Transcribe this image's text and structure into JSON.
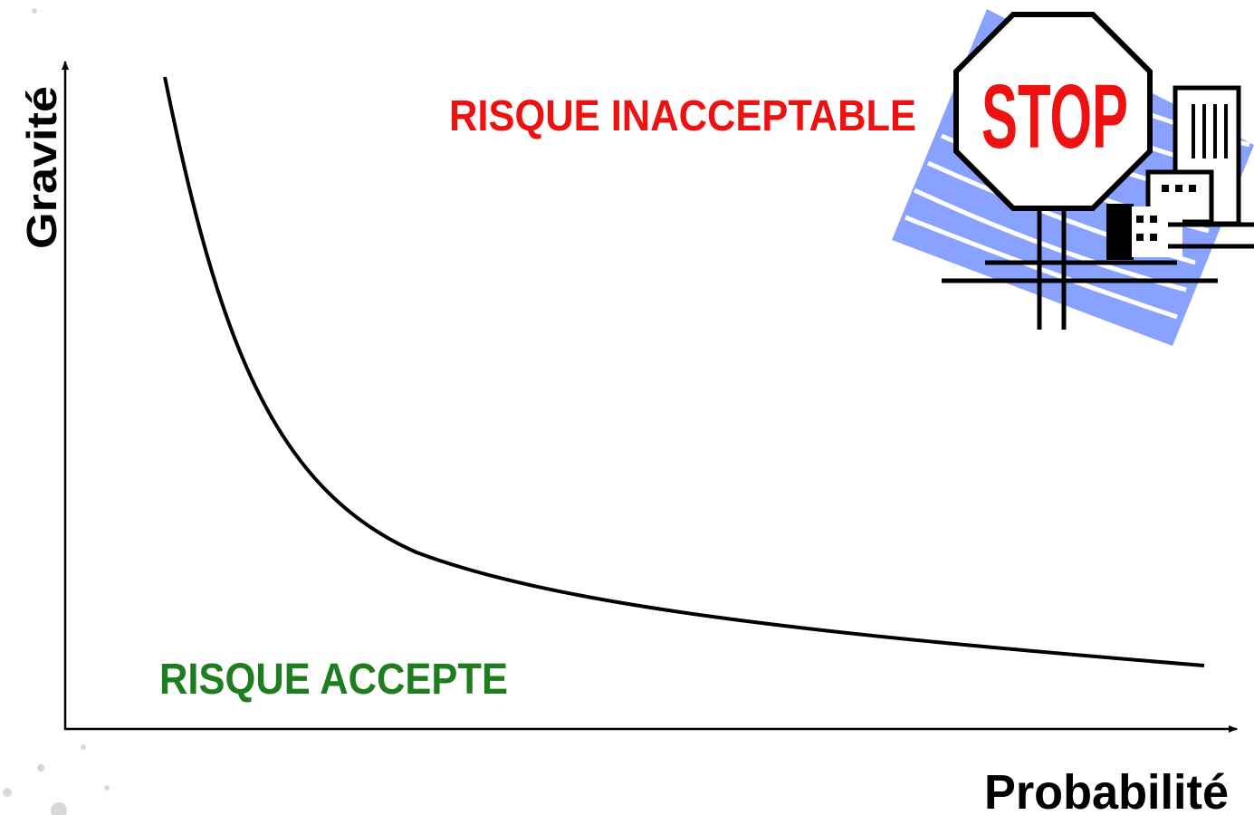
{
  "axes": {
    "y_label": "Gravité",
    "x_label": "Probabilité"
  },
  "zones": {
    "unacceptable": "RISQUE INACCEPTABLE",
    "accepted": "RISQUE ACCEPTE"
  },
  "sign": {
    "text": "STOP"
  }
}
